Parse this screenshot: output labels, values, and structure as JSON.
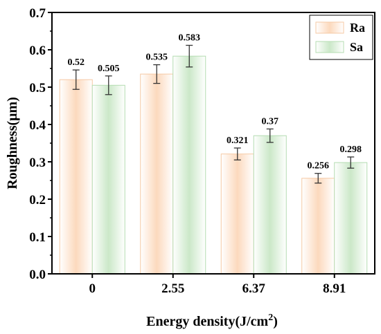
{
  "chart_data": {
    "type": "bar",
    "categories": [
      "0",
      "2.55",
      "6.37",
      "8.91"
    ],
    "series": [
      {
        "name": "Ra",
        "values": [
          0.52,
          0.535,
          0.321,
          0.256
        ],
        "errors": [
          0.026,
          0.025,
          0.016,
          0.013
        ],
        "labels": [
          "0.52",
          "0.535",
          "0.321",
          "0.256"
        ]
      },
      {
        "name": "Sa",
        "values": [
          0.505,
          0.583,
          0.37,
          0.298
        ],
        "errors": [
          0.025,
          0.029,
          0.018,
          0.015
        ],
        "labels": [
          "0.505",
          "0.583",
          "0.37",
          "0.298"
        ]
      }
    ],
    "xlabel": "Energy density(J/cm",
    "xlabel_superscript": "2",
    "xlabel_close": ")",
    "ylabel": "Roughness(μm)",
    "ylim": [
      0.0,
      0.7
    ],
    "yticks": [
      "0.0",
      "0.1",
      "0.2",
      "0.3",
      "0.4",
      "0.5",
      "0.6",
      "0.7"
    ],
    "grid": false,
    "legend_position": "top-right",
    "colors": {
      "Ra": {
        "edge": "#f6c9a4",
        "fill": "#fde4d1"
      },
      "Sa": {
        "edge": "#b4dcb1",
        "fill": "#dcefd9"
      }
    }
  }
}
